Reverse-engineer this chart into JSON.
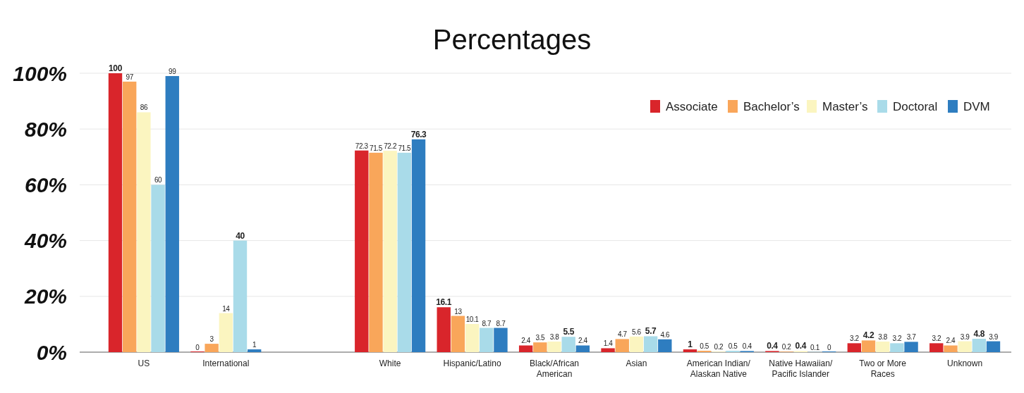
{
  "chart_data": {
    "type": "bar",
    "title": "Percentages",
    "categories": [
      "US",
      "International",
      null,
      "White",
      "Hispanic/Latino",
      "Black/African American",
      "Asian",
      "American Indian/ Alaskan Native",
      "Native Hawaiian/ Pacific Islander",
      "Two or More Races",
      "Unknown"
    ],
    "series": [
      {
        "name": "Associate",
        "color": "#d9252b",
        "values": [
          100,
          0,
          null,
          72.3,
          16.1,
          2.4,
          1.4,
          1,
          0.4,
          3.2,
          3.2
        ]
      },
      {
        "name": "Bachelor’s",
        "color": "#f9a65a",
        "values": [
          97,
          3,
          null,
          71.5,
          13,
          3.5,
          4.7,
          0.5,
          0.2,
          4.2,
          2.4
        ]
      },
      {
        "name": "Master’s",
        "color": "#fbf5c0",
        "values": [
          86,
          14,
          null,
          72.2,
          10.1,
          3.8,
          5.6,
          0.2,
          0.4,
          3.8,
          3.9
        ]
      },
      {
        "name": "Doctoral",
        "color": "#a9dbe9",
        "values": [
          60,
          40,
          null,
          71.5,
          8.7,
          5.5,
          5.7,
          0.5,
          0.1,
          3.2,
          4.8
        ]
      },
      {
        "name": "DVM",
        "color": "#2e7dc0",
        "values": [
          99,
          1,
          null,
          76.3,
          8.7,
          2.4,
          4.6,
          0.4,
          0,
          3.7,
          3.9
        ]
      }
    ],
    "ylim": [
      0,
      100
    ],
    "yticks": [
      {
        "value": 0,
        "label": "0%"
      },
      {
        "value": 20,
        "label": "20%"
      },
      {
        "value": 40,
        "label": "40%"
      },
      {
        "value": 60,
        "label": "60%"
      },
      {
        "value": 80,
        "label": "80%"
      },
      {
        "value": 100,
        "label": "100%"
      }
    ],
    "grid": "y",
    "legend": "top right",
    "data_labels": true
  }
}
